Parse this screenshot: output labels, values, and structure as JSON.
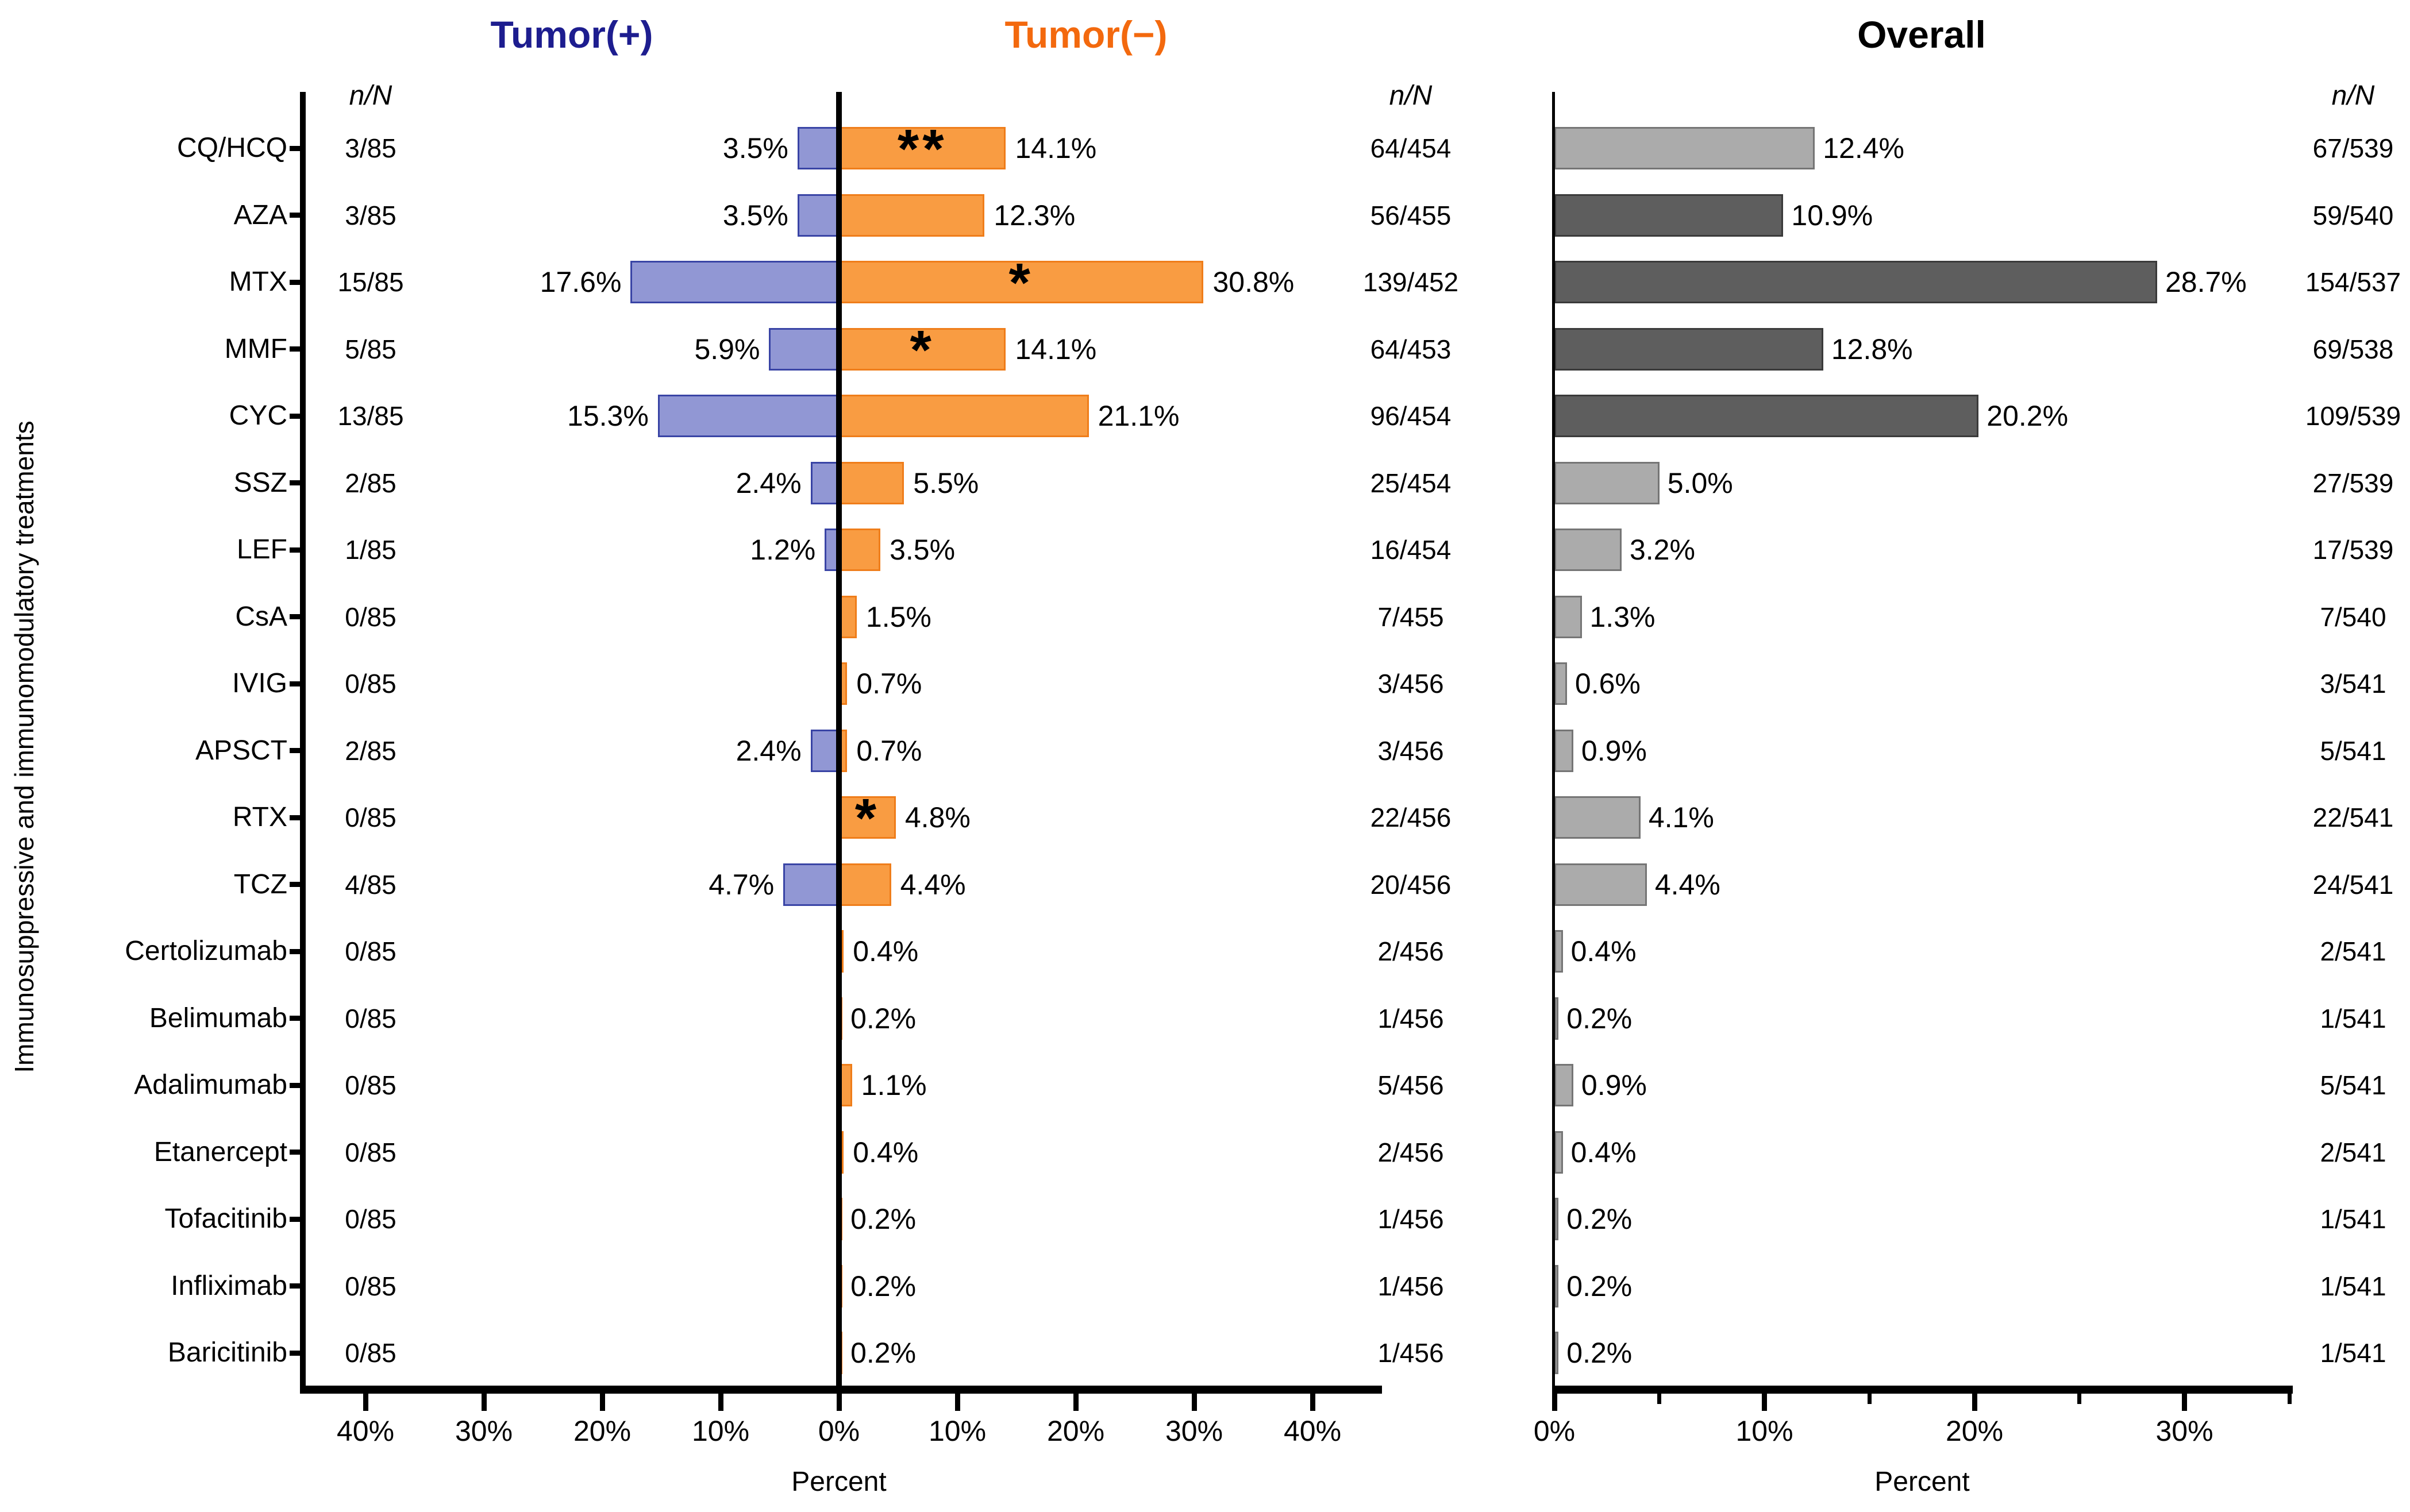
{
  "chart_data": {
    "type": "bar",
    "description": "Butterfly bar chart of immunosuppressive treatment frequencies in Tumor(+) vs Tumor(-) patients, with an Overall horizontal bar chart",
    "series_titles": {
      "tumor_pos": "Tumor(+)",
      "tumor_neg": "Tumor(−)",
      "overall": "Overall"
    },
    "headers": {
      "left_nN": "n/N",
      "center_nN": "n/N",
      "right_nN": "n/N"
    },
    "ylabel": "Immunosuppressive and immunomodulatory treatments",
    "categories": [
      "CQ/HCQ",
      "AZA",
      "MTX",
      "MMF",
      "CYC",
      "SSZ",
      "LEF",
      "CsA",
      "IVIG",
      "APSCT",
      "RTX",
      "TCZ",
      "Certolizumab",
      "Belimumab",
      "Adalimumab",
      "Etanercept",
      "Tofacitinib",
      "Infliximab",
      "Baricitinib"
    ],
    "series": [
      {
        "name": "Tumor(+)",
        "values": [
          3.5,
          3.5,
          17.6,
          5.9,
          15.3,
          2.4,
          1.2,
          0,
          0,
          2.4,
          0,
          4.7,
          0,
          0,
          0,
          0,
          0,
          0,
          0
        ],
        "labels": [
          "3.5%",
          "3.5%",
          "17.6%",
          "5.9%",
          "15.3%",
          "2.4%",
          "1.2%",
          "",
          "",
          "2.4%",
          "",
          "4.7%",
          "",
          "",
          "",
          "",
          "",
          "",
          ""
        ],
        "nN": [
          "3/85",
          "3/85",
          "15/85",
          "5/85",
          "13/85",
          "2/85",
          "1/85",
          "0/85",
          "0/85",
          "2/85",
          "0/85",
          "4/85",
          "0/85",
          "0/85",
          "0/85",
          "0/85",
          "0/85",
          "0/85",
          "0/85"
        ]
      },
      {
        "name": "Tumor(−)",
        "values": [
          14.1,
          12.3,
          30.8,
          14.1,
          21.1,
          5.5,
          3.5,
          1.5,
          0.7,
          0.7,
          4.8,
          4.4,
          0.4,
          0.2,
          1.1,
          0.4,
          0.2,
          0.2,
          0.2
        ],
        "labels": [
          "14.1%",
          "12.3%",
          "30.8%",
          "14.1%",
          "21.1%",
          "5.5%",
          "3.5%",
          "1.5%",
          "0.7%",
          "0.7%",
          "4.8%",
          "4.4%",
          "0.4%",
          "0.2%",
          "1.1%",
          "0.4%",
          "0.2%",
          "0.2%",
          "0.2%"
        ],
        "sig": [
          "**",
          "",
          "*",
          "*",
          "",
          "",
          "",
          "",
          "",
          "",
          "*",
          "",
          "",
          "",
          "",
          "",
          "",
          "",
          ""
        ],
        "nN": [
          "64/454",
          "56/455",
          "139/452",
          "64/453",
          "96/454",
          "25/454",
          "16/454",
          "7/455",
          "3/456",
          "3/456",
          "22/456",
          "20/456",
          "2/456",
          "1/456",
          "5/456",
          "2/456",
          "1/456",
          "1/456",
          "1/456"
        ]
      },
      {
        "name": "Overall",
        "values": [
          12.4,
          10.9,
          28.7,
          12.8,
          20.2,
          5.0,
          3.2,
          1.3,
          0.6,
          0.9,
          4.1,
          4.4,
          0.4,
          0.2,
          0.9,
          0.4,
          0.2,
          0.2,
          0.2
        ],
        "labels": [
          "12.4%",
          "10.9%",
          "28.7%",
          "12.8%",
          "20.2%",
          "5.0%",
          "3.2%",
          "1.3%",
          "0.6%",
          "0.9%",
          "4.1%",
          "4.4%",
          "0.4%",
          "0.2%",
          "0.9%",
          "0.4%",
          "0.2%",
          "0.2%",
          "0.2%"
        ],
        "shades": [
          "light",
          "dark",
          "dark",
          "dark",
          "dark",
          "light",
          "light",
          "light",
          "light",
          "light",
          "light",
          "light",
          "light",
          "light",
          "light",
          "light",
          "light",
          "light",
          "light"
        ],
        "nN": [
          "67/539",
          "59/540",
          "154/537",
          "69/538",
          "109/539",
          "27/539",
          "17/539",
          "7/540",
          "3/541",
          "5/541",
          "22/541",
          "24/541",
          "2/541",
          "1/541",
          "5/541",
          "2/541",
          "1/541",
          "1/541",
          "1/541"
        ]
      }
    ],
    "left_axis": {
      "xlabel": "Percent",
      "tick_values": [
        -40,
        -30,
        -20,
        -10,
        0,
        10,
        20,
        30,
        40
      ],
      "tick_labels": [
        "40%",
        "30%",
        "20%",
        "10%",
        "0%",
        "10%",
        "20%",
        "30%",
        "40%"
      ],
      "half_range_pct": 45.5,
      "grid": false
    },
    "right_axis": {
      "xlabel": "Percent",
      "tick_values": [
        0,
        10,
        20,
        30
      ],
      "tick_labels": [
        "0%",
        "10%",
        "20%",
        "30%"
      ],
      "minor_tick_values": [
        5,
        15,
        25,
        35
      ],
      "max_pct": 35,
      "grid": false
    },
    "colors": {
      "tumor_pos_fill": "#9197D4",
      "tumor_pos_border": "#3944A5",
      "tumor_neg_fill": "#F99C42",
      "tumor_neg_border": "#EF7D1A",
      "overall_light_fill": "#ABABAB",
      "overall_light_border": "#757575",
      "overall_dark_fill": "#5E5E5E",
      "overall_dark_border": "#3A3A3A",
      "title_pos": "#1D1D8F",
      "title_neg": "#F3690E",
      "title_overall": "#000000",
      "axis": "#000000"
    }
  }
}
